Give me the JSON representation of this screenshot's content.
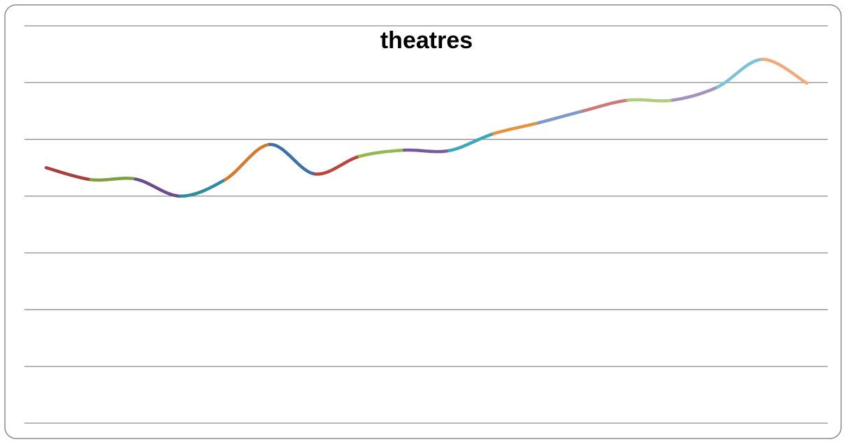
{
  "chart_data": {
    "type": "line",
    "title": "theatres",
    "categories": [
      null,
      null,
      null,
      null,
      null,
      null,
      null,
      null,
      null,
      null,
      null,
      null,
      null,
      null,
      null,
      null,
      null,
      null
    ],
    "values": [
      4.5,
      4.29,
      4.3,
      4.0,
      4.29,
      4.91,
      4.39,
      4.7,
      4.81,
      4.8,
      5.1,
      5.29,
      5.5,
      5.69,
      5.69,
      5.92,
      6.41,
      5.99
    ],
    "segment_colors": [
      "#a5403d",
      "#7ea13f",
      "#6b4c8a",
      "#2e8ca0",
      "#d27a2d",
      "#3d6fa8",
      "#b94540",
      "#93b94f",
      "#7a5a9e",
      "#3ea6bf",
      "#e8913e",
      "#7d9acb",
      "#cc7a78",
      "#b1cc80",
      "#a391bf",
      "#7cc1d6",
      "#f2ab78"
    ],
    "ylim": [
      0,
      7
    ],
    "yticks": [
      0,
      1,
      2,
      3,
      4,
      5,
      6,
      7
    ],
    "grid": true,
    "smooth": true
  }
}
